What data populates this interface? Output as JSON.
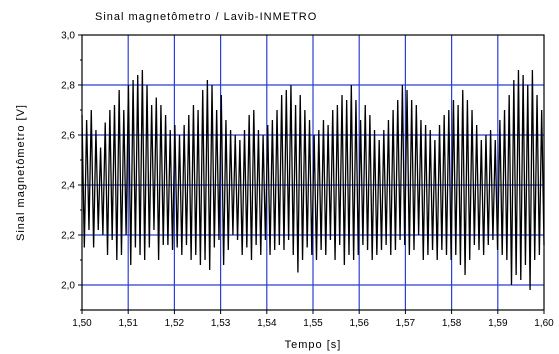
{
  "chart_data": {
    "type": "line",
    "title": "Sinal magnetômetro / Lavib-INMETRO",
    "xlabel": "Tempo [s]",
    "ylabel": "Sinal magnetômetro [V]",
    "xlim": [
      1.5,
      1.6
    ],
    "ylim": [
      1.9,
      3.0
    ],
    "x_ticks": [
      1.5,
      1.51,
      1.52,
      1.53,
      1.54,
      1.55,
      1.56,
      1.57,
      1.58,
      1.59,
      1.6
    ],
    "x_tick_labels": [
      "1,50",
      "1,51",
      "1,52",
      "1,53",
      "1,54",
      "1,55",
      "1,56",
      "1,57",
      "1,58",
      "1,59",
      "1,60"
    ],
    "y_ticks": [
      2.0,
      2.2,
      2.4,
      2.6,
      2.8,
      3.0
    ],
    "y_tick_labels": [
      "2,0",
      "2,2",
      "2,4",
      "2,6",
      "2,8",
      "3,0"
    ],
    "grid": true,
    "grid_color": "#2b3fd6",
    "line_color": "#000000",
    "series": [
      {
        "x_start": 1.5,
        "x_end": 1.6,
        "values": [
          2.68,
          2.15,
          2.66,
          2.22,
          2.7,
          2.15,
          2.62,
          2.22,
          2.55,
          2.2,
          2.65,
          2.12,
          2.7,
          2.18,
          2.72,
          2.1,
          2.78,
          2.12,
          2.7,
          2.2,
          2.8,
          2.08,
          2.82,
          2.15,
          2.84,
          2.12,
          2.86,
          2.1,
          2.8,
          2.15,
          2.72,
          2.22,
          2.75,
          2.1,
          2.72,
          2.16,
          2.68,
          2.16,
          2.62,
          2.14,
          2.64,
          2.15,
          2.6,
          2.12,
          2.64,
          2.16,
          2.68,
          2.1,
          2.72,
          2.12,
          2.7,
          2.08,
          2.78,
          2.1,
          2.82,
          2.06,
          2.8,
          2.15,
          2.7,
          2.18,
          2.76,
          2.08,
          2.66,
          2.14,
          2.62,
          2.2,
          2.6,
          2.18,
          2.58,
          2.12,
          2.62,
          2.15,
          2.68,
          2.1,
          2.7,
          2.16,
          2.62,
          2.12,
          2.6,
          2.18,
          2.64,
          2.12,
          2.66,
          2.14,
          2.7,
          2.16,
          2.76,
          2.14,
          2.78,
          2.18,
          2.8,
          2.12,
          2.72,
          2.05,
          2.76,
          2.1,
          2.7,
          2.15,
          2.66,
          2.12,
          2.6,
          2.1,
          2.62,
          2.14,
          2.66,
          2.12,
          2.64,
          2.18,
          2.7,
          2.1,
          2.72,
          2.16,
          2.76,
          2.08,
          2.74,
          2.12,
          2.8,
          2.1,
          2.74,
          2.12,
          2.66,
          2.16,
          2.72,
          2.14,
          2.68,
          2.1,
          2.62,
          2.12,
          2.58,
          2.14,
          2.62,
          2.16,
          2.66,
          2.12,
          2.7,
          2.14,
          2.74,
          2.18,
          2.8,
          2.16,
          2.78,
          2.12,
          2.74,
          2.14,
          2.72,
          2.2,
          2.66,
          2.1,
          2.64,
          2.12,
          2.62,
          2.14,
          2.58,
          2.1,
          2.64,
          2.14,
          2.68,
          2.12,
          2.7,
          2.1,
          2.74,
          2.12,
          2.72,
          2.08,
          2.78,
          2.04,
          2.74,
          2.1,
          2.7,
          2.16,
          2.64,
          2.14,
          2.58,
          2.12,
          2.6,
          2.16,
          2.62,
          2.18,
          2.58,
          2.14,
          2.66,
          2.12,
          2.7,
          2.1,
          2.76,
          2.0,
          2.82,
          2.04,
          2.86,
          2.02,
          2.84,
          2.08,
          2.8,
          1.98,
          2.86,
          2.1,
          2.76,
          2.12,
          2.7,
          2.16
        ]
      }
    ]
  }
}
